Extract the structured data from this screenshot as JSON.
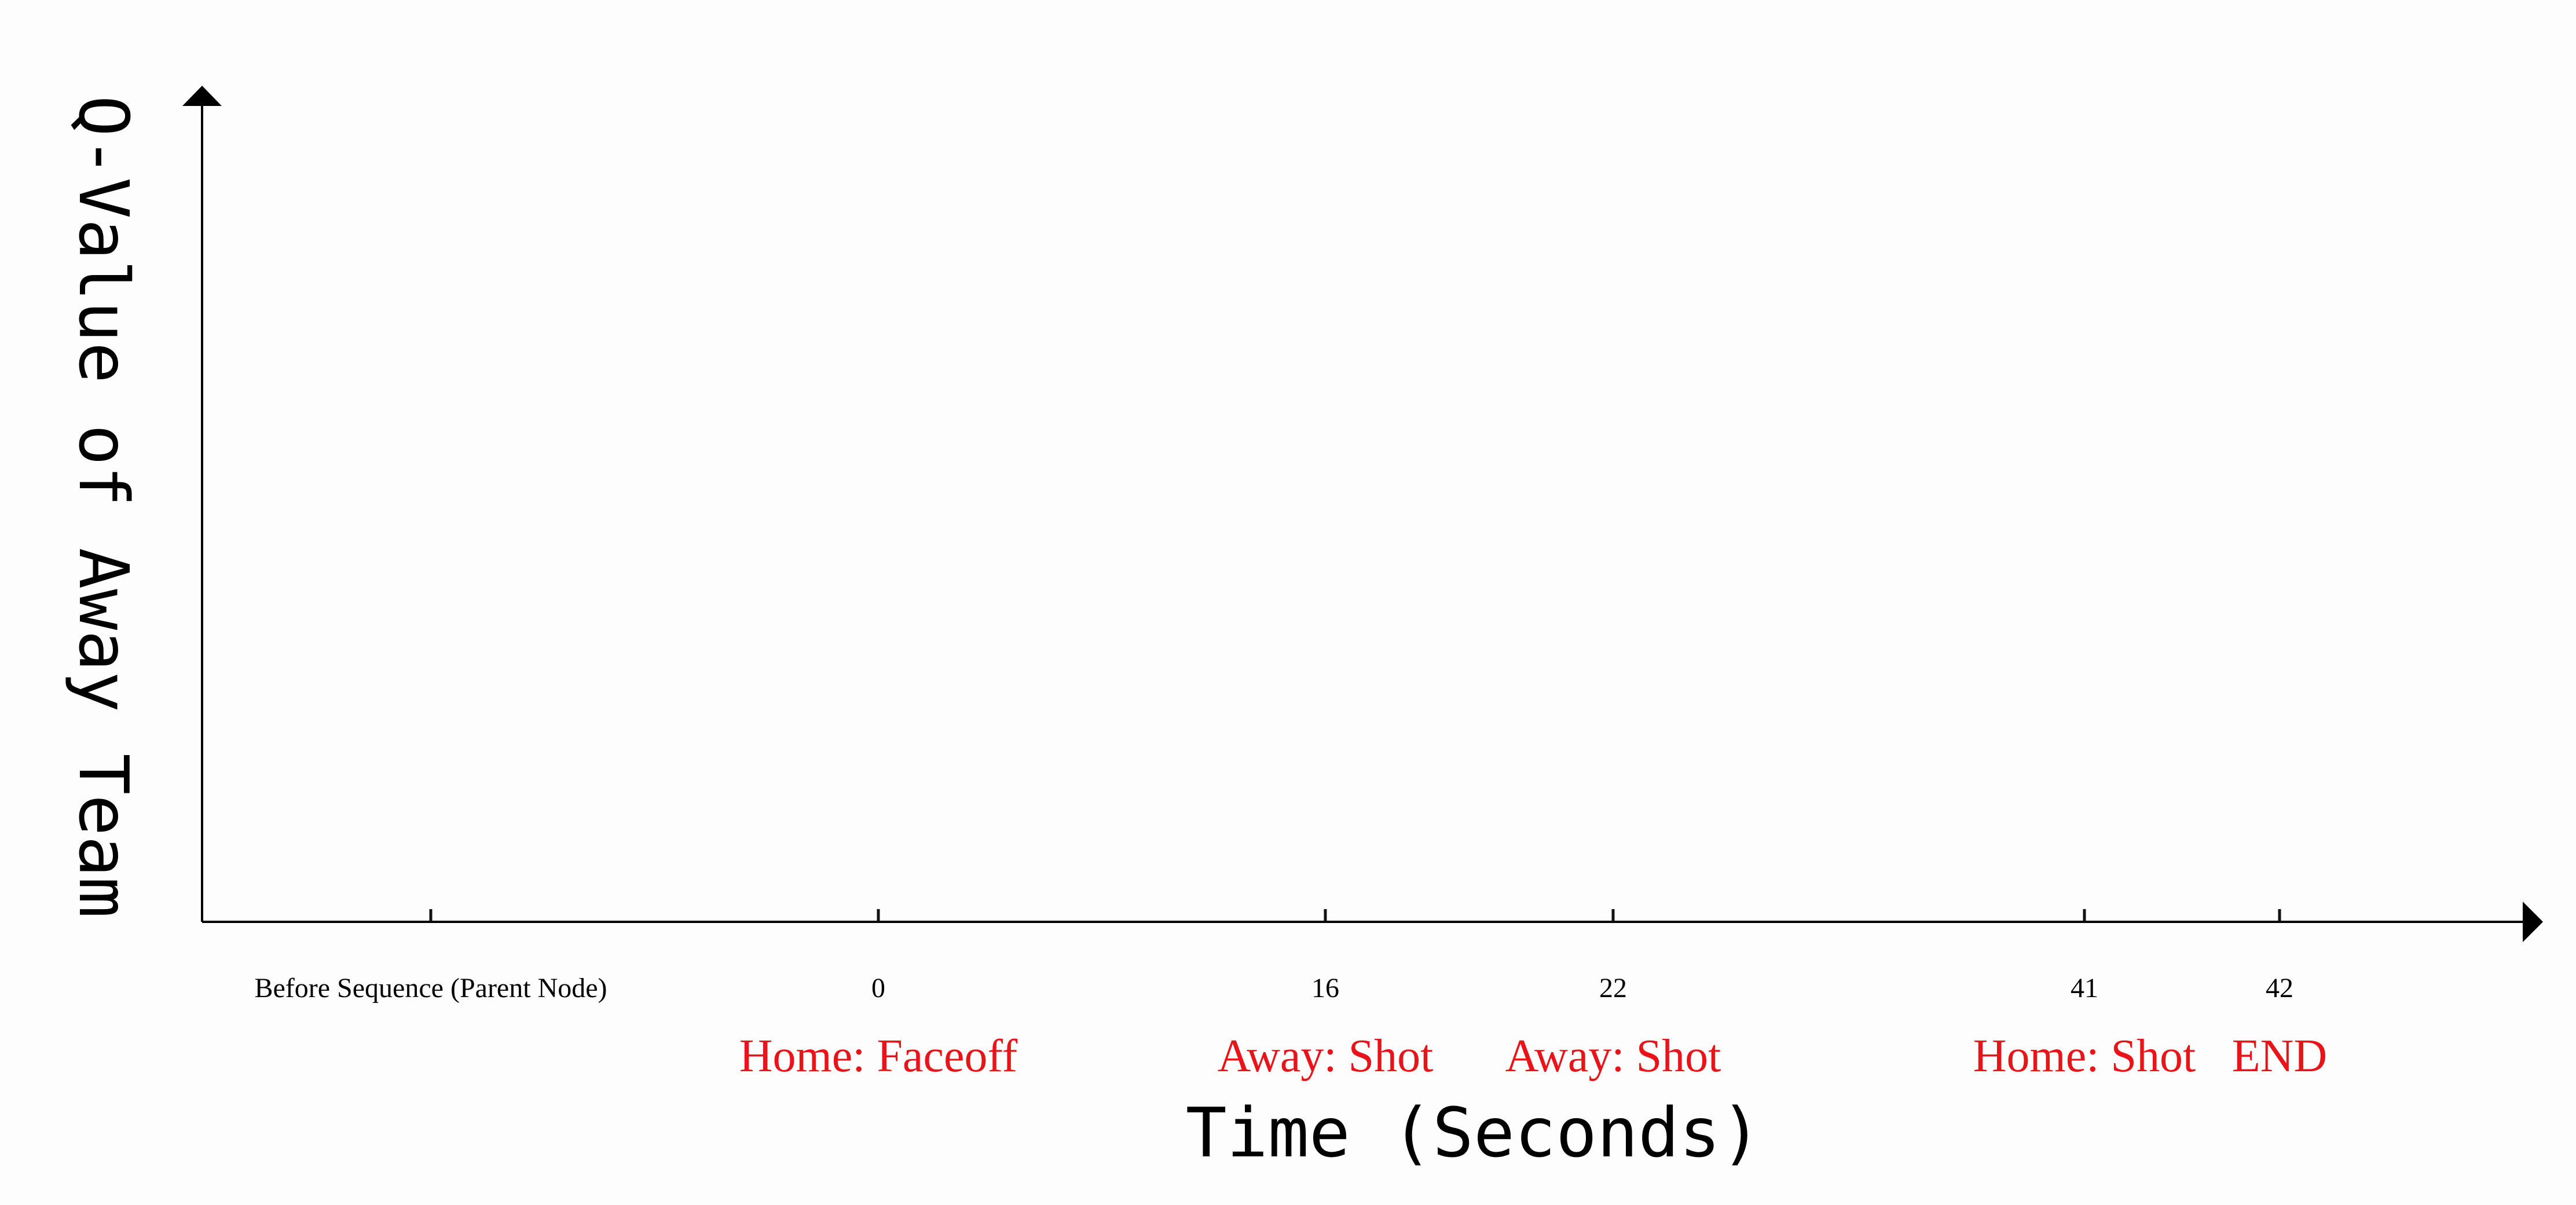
{
  "chart_data": {
    "type": "line",
    "title": "",
    "xlabel": "Time (Seconds)",
    "ylabel": "Q-Value of Away Team",
    "x_ticks": [
      "Before Sequence (Parent Node)",
      "0",
      "16",
      "22",
      "41",
      "42"
    ],
    "events": [
      "",
      "Home: Faceoff",
      "Away: Shot",
      "Away: Shot",
      "Home: Shot",
      "END"
    ],
    "event_color": "#e8141a",
    "axis_color": "#000000",
    "grid": false,
    "series": []
  }
}
